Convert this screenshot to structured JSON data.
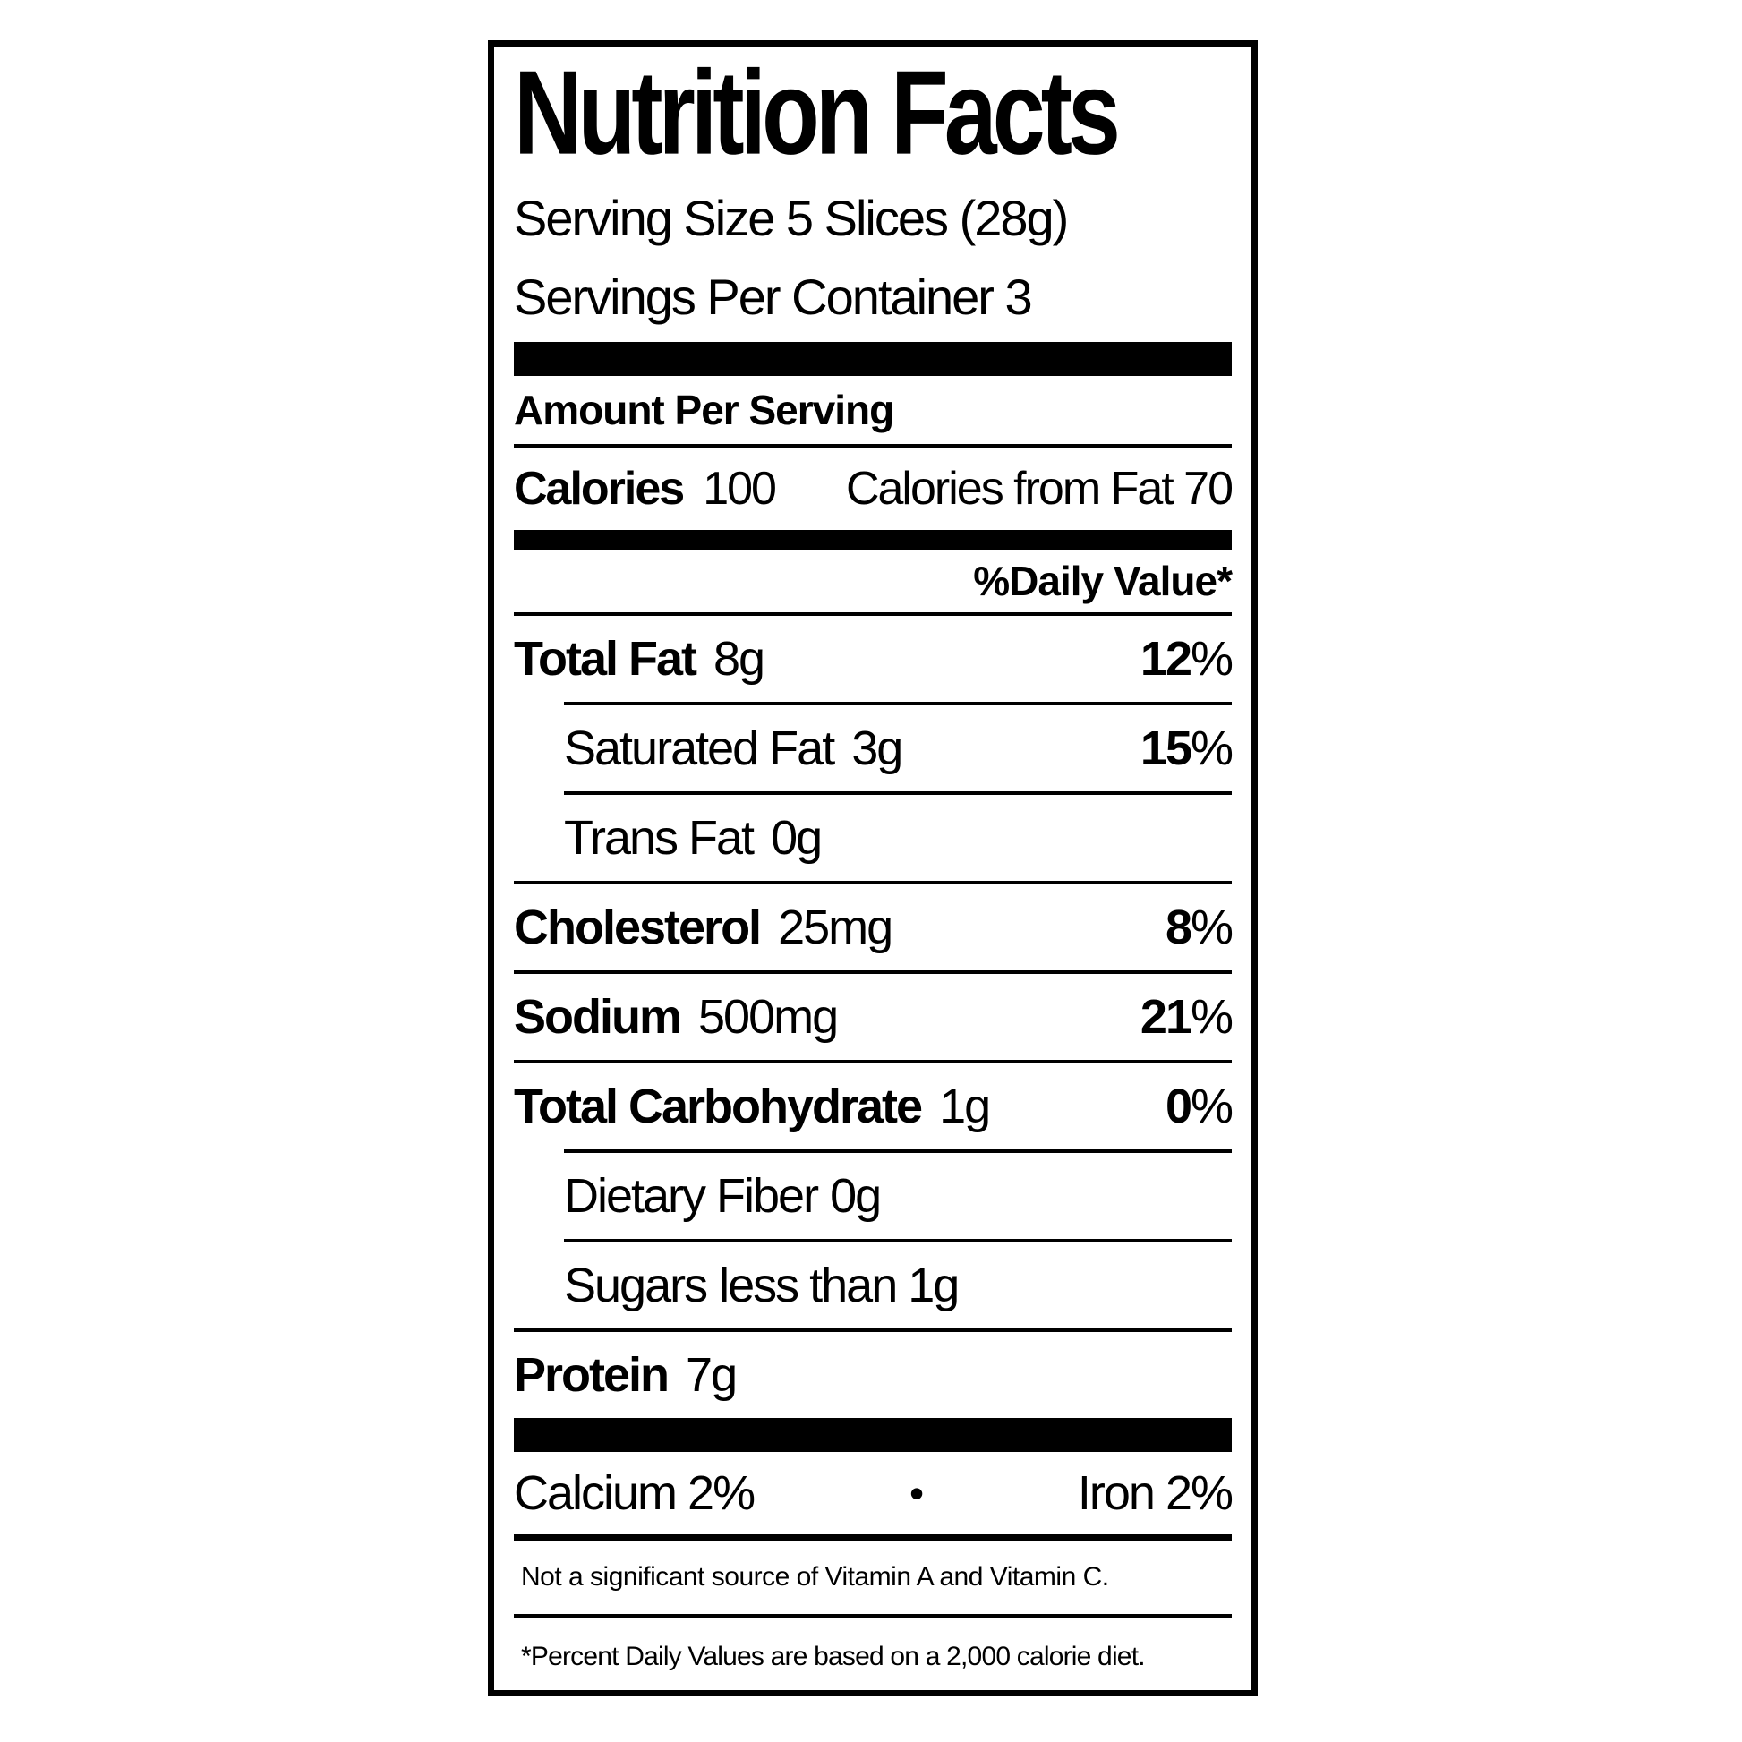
{
  "page": {
    "background_color": "#ffffff",
    "ink_color": "#000000"
  },
  "label": {
    "title": "Nutrition Facts",
    "serving": {
      "size_line": "Serving Size 5 Slices (28g)",
      "container_line": "Servings Per Container 3"
    },
    "amount_per_serving": "Amount Per Serving",
    "calories": {
      "label": "Calories",
      "value": "100",
      "from_fat": "Calories from Fat 70"
    },
    "daily_value_header": "%Daily Value*",
    "percent_sign": "%",
    "nutrients": [
      {
        "name": "Total Fat",
        "amount": "8g",
        "dv": "12"
      },
      {
        "name": "Saturated Fat",
        "amount": "3g",
        "dv": "15"
      },
      {
        "name": "Trans Fat",
        "amount": "0g",
        "dv": ""
      },
      {
        "name": "Cholesterol",
        "amount": "25mg",
        "dv": "8"
      },
      {
        "name": "Sodium",
        "amount": "500mg",
        "dv": "21"
      },
      {
        "name": "Total Carbohydrate",
        "amount": "1g",
        "dv": "0"
      },
      {
        "name": "Dietary Fiber",
        "amount": "0g",
        "dv": ""
      },
      {
        "name": "Sugars",
        "amount": "less than 1g",
        "dv": ""
      },
      {
        "name": "Protein",
        "amount": "7g",
        "dv": ""
      }
    ],
    "minerals": {
      "calcium": "Calcium 2%",
      "bullet": "•",
      "iron": "Iron 2%"
    },
    "insignificant_note": "Not a significant source of Vitamin A and Vitamin C.",
    "footnote": "*Percent Daily Values are based on a 2,000 calorie diet."
  }
}
